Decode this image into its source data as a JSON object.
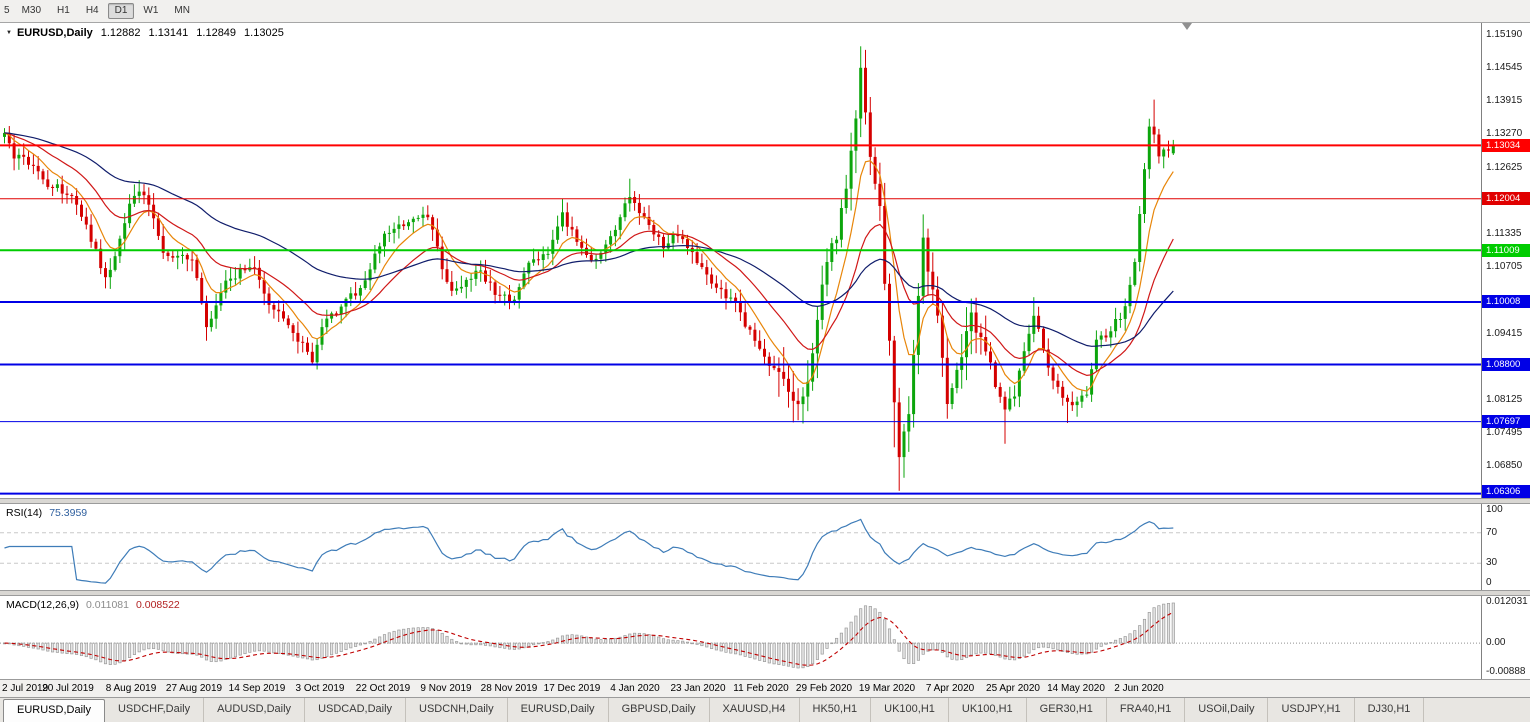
{
  "toolbar": {
    "timeframes": [
      "5",
      "M30",
      "H1",
      "H4",
      "D1",
      "W1",
      "MN"
    ],
    "active_timeframe": "D1"
  },
  "chart": {
    "title": {
      "symbol_period": "EURUSD,Daily",
      "open": "1.12882",
      "high": "1.13141",
      "low": "1.12849",
      "close": "1.13025"
    },
    "axis_ticks": [
      "1.15190",
      "1.14545",
      "1.13915",
      "1.13270",
      "1.12625",
      "1.11335",
      "1.10705",
      "1.09415",
      "1.08125",
      "1.07495",
      "1.06850"
    ],
    "levels": [
      {
        "price": 1.13034,
        "label": "1.13034",
        "color": "#FF0000",
        "width": 2
      },
      {
        "price": 1.12004,
        "label": "1.12004",
        "color": "#E00000",
        "width": 1
      },
      {
        "price": 1.11009,
        "label": "1.11009",
        "color": "#00CC00",
        "width": 2
      },
      {
        "price": 1.10008,
        "label": "1.10008",
        "color": "#0000E6",
        "width": 2
      },
      {
        "price": 1.088,
        "label": "1.08800",
        "color": "#0000E6",
        "width": 2
      },
      {
        "price": 1.07697,
        "label": "1.07697",
        "color": "#0000E6",
        "width": 1
      },
      {
        "price": 1.06306,
        "label": "1.06306",
        "color": "#0000E6",
        "width": 2
      }
    ],
    "price_range": {
      "top": 1.154,
      "bottom": 1.0622
    }
  },
  "rsi": {
    "label": "RSI(14)",
    "value": "75.3959",
    "axis": [
      "100",
      "70",
      "30",
      "0"
    ],
    "levels": [
      70,
      30
    ],
    "range": [
      0,
      100
    ],
    "line_color": "#3E7CB8"
  },
  "macd": {
    "label": "MACD(12,26,9)",
    "main_value": "0.011081",
    "signal_value": "0.008522",
    "axis_top": "0.012031",
    "axis_zero": "0.00",
    "axis_bottom": "-0.00888",
    "range": [
      -0.0089,
      0.012031
    ],
    "histogram_fill": "#E4E4E4",
    "histogram_stroke": "#9A9A9A",
    "signal_color": "#C00000"
  },
  "dates": [
    "2 Jul 2019",
    "20 Jul 2019",
    "8 Aug 2019",
    "27 Aug 2019",
    "14 Sep 2019",
    "3 Oct 2019",
    "22 Oct 2019",
    "9 Nov 2019",
    "28 Nov 2019",
    "17 Dec 2019",
    "4 Jan 2020",
    "23 Jan 2020",
    "11 Feb 2020",
    "29 Feb 2020",
    "19 Mar 2020",
    "7 Apr 2020",
    "25 Apr 2020",
    "14 May 2020",
    "2 Jun 2020"
  ],
  "tabs": [
    "EURUSD,Daily",
    "USDCHF,Daily",
    "AUDUSD,Daily",
    "USDCAD,Daily",
    "USDCNH,Daily",
    "EURUSD,Daily",
    "GBPUSD,Daily",
    "XAUUSD,H4",
    "HK50,H1",
    "UK100,H1",
    "UK100,H1",
    "GER30,H1",
    "FRA40,H1",
    "USOil,Daily",
    "USDJPY,H1",
    "DJ30,H1"
  ],
  "active_tab_index": 0,
  "chart_data": {
    "type": "candlestick",
    "symbol": "EURUSD",
    "period": "Daily",
    "n_candles": 244,
    "up_color": "#0CA50C",
    "down_color": "#D40000",
    "grid": false,
    "x_label_step_candles": 13.1,
    "price_anchors": [
      [
        0,
        1.132
      ],
      [
        2,
        1.1285
      ],
      [
        5,
        1.127
      ],
      [
        9,
        1.1228
      ],
      [
        13,
        1.1215
      ],
      [
        17,
        1.115
      ],
      [
        21,
        1.1045
      ],
      [
        23,
        1.1085
      ],
      [
        26,
        1.1195
      ],
      [
        29,
        1.1215
      ],
      [
        33,
        1.11
      ],
      [
        36,
        1.1085
      ],
      [
        39,
        1.109
      ],
      [
        42,
        1.095
      ],
      [
        46,
        1.1035
      ],
      [
        50,
        1.107
      ],
      [
        52,
        1.1065
      ],
      [
        55,
        1.1
      ],
      [
        60,
        1.094
      ],
      [
        64,
        1.089
      ],
      [
        66,
        1.096
      ],
      [
        70,
        1.099
      ],
      [
        74,
        1.103
      ],
      [
        79,
        1.113
      ],
      [
        84,
        1.1155
      ],
      [
        88,
        1.1165
      ],
      [
        91,
        1.107
      ],
      [
        93,
        1.102
      ],
      [
        96,
        1.104
      ],
      [
        99,
        1.106
      ],
      [
        103,
        1.101
      ],
      [
        106,
        1.1005
      ],
      [
        109,
        1.108
      ],
      [
        113,
        1.109
      ],
      [
        116,
        1.117
      ],
      [
        118,
        1.1135
      ],
      [
        122,
        1.108
      ],
      [
        126,
        1.112
      ],
      [
        130,
        1.121
      ],
      [
        133,
        1.116
      ],
      [
        137,
        1.111
      ],
      [
        140,
        1.113
      ],
      [
        144,
        1.108
      ],
      [
        147,
        1.1035
      ],
      [
        152,
        1.0995
      ],
      [
        157,
        1.091
      ],
      [
        162,
        1.084
      ],
      [
        165,
        1.079
      ],
      [
        168,
        1.089
      ],
      [
        170,
        1.103
      ],
      [
        173,
        1.1135
      ],
      [
        176,
        1.128
      ],
      [
        178,
        1.144
      ],
      [
        180,
        1.128
      ],
      [
        182,
        1.118
      ],
      [
        184,
        1.092
      ],
      [
        186,
        1.069
      ],
      [
        188,
        1.08
      ],
      [
        190,
        1.1
      ],
      [
        191,
        1.113
      ],
      [
        194,
        1.0965
      ],
      [
        196,
        1.0795
      ],
      [
        198,
        1.087
      ],
      [
        201,
        1.0975
      ],
      [
        204,
        1.0915
      ],
      [
        206,
        1.084
      ],
      [
        208,
        1.079
      ],
      [
        210,
        1.0825
      ],
      [
        214,
        1.098
      ],
      [
        216,
        1.0905
      ],
      [
        219,
        1.083
      ],
      [
        222,
        1.08
      ],
      [
        225,
        1.082
      ],
      [
        227,
        1.092
      ],
      [
        231,
        1.096
      ],
      [
        233,
        1.099
      ],
      [
        235,
        1.108
      ],
      [
        236,
        1.117
      ],
      [
        238,
        1.134
      ],
      [
        239,
        1.133
      ],
      [
        240,
        1.129
      ],
      [
        242,
        1.13
      ],
      [
        243,
        1.13025
      ]
    ],
    "extremes": [
      {
        "i": 21,
        "l": 1.1027
      },
      {
        "i": 42,
        "l": 1.0926
      },
      {
        "i": 64,
        "l": 1.0879
      },
      {
        "i": 116,
        "h": 1.12
      },
      {
        "i": 130,
        "h": 1.1239
      },
      {
        "i": 165,
        "l": 1.0778
      },
      {
        "i": 177,
        "h": 1.136
      },
      {
        "i": 178,
        "h": 1.1495
      },
      {
        "i": 185,
        "l": 1.072
      },
      {
        "i": 186,
        "l": 1.0636
      },
      {
        "i": 208,
        "l": 1.0727
      },
      {
        "i": 214,
        "h": 1.101
      },
      {
        "i": 221,
        "l": 1.0767
      },
      {
        "i": 239,
        "h": 1.1392
      }
    ],
    "last_candle": {
      "open": 1.12882,
      "high": 1.13141,
      "low": 1.12849,
      "close": 1.13025
    },
    "moving_averages": [
      {
        "name": "fast",
        "period": 8,
        "color": "#E8860A"
      },
      {
        "name": "medium",
        "period": 21,
        "color": "#D01818"
      },
      {
        "name": "slow",
        "period": 55,
        "color": "#101D6B"
      }
    ]
  }
}
